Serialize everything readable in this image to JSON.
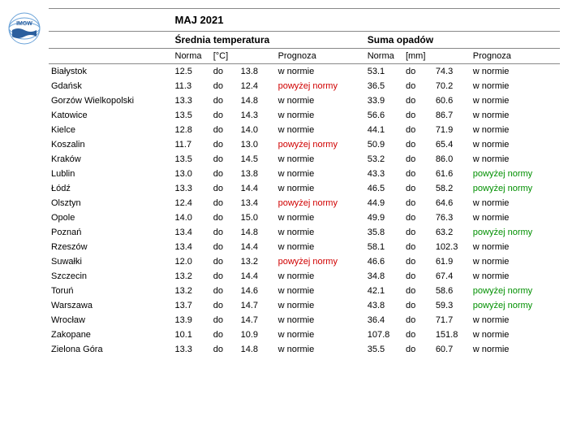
{
  "title": "MAJ 2021",
  "sections": {
    "temp": {
      "label": "Średnia temperatura",
      "norma_label": "Norma",
      "unit": "[°C]",
      "prognoza_label": "Prognoza"
    },
    "prec": {
      "label": "Suma opadów",
      "norma_label": "Norma",
      "unit": "[mm]",
      "prognoza_label": "Prognoza"
    }
  },
  "do_label": "do",
  "prognoza_values": {
    "normal": "w normie",
    "above": "powyżej normy"
  },
  "colors": {
    "above_temp": "#d00000",
    "above_prec": "#009000"
  },
  "rows": [
    {
      "city": "Białystok",
      "t_lo": "12.5",
      "t_hi": "13.8",
      "t_prog": "normal",
      "p_lo": "53.1",
      "p_hi": "74.3",
      "p_prog": "normal"
    },
    {
      "city": "Gdańsk",
      "t_lo": "11.3",
      "t_hi": "12.4",
      "t_prog": "above",
      "p_lo": "36.5",
      "p_hi": "70.2",
      "p_prog": "normal"
    },
    {
      "city": "Gorzów Wielkopolski",
      "t_lo": "13.3",
      "t_hi": "14.8",
      "t_prog": "normal",
      "p_lo": "33.9",
      "p_hi": "60.6",
      "p_prog": "normal"
    },
    {
      "city": "Katowice",
      "t_lo": "13.5",
      "t_hi": "14.3",
      "t_prog": "normal",
      "p_lo": "56.6",
      "p_hi": "86.7",
      "p_prog": "normal"
    },
    {
      "city": "Kielce",
      "t_lo": "12.8",
      "t_hi": "14.0",
      "t_prog": "normal",
      "p_lo": "44.1",
      "p_hi": "71.9",
      "p_prog": "normal"
    },
    {
      "city": "Koszalin",
      "t_lo": "11.7",
      "t_hi": "13.0",
      "t_prog": "above",
      "p_lo": "50.9",
      "p_hi": "65.4",
      "p_prog": "normal"
    },
    {
      "city": "Kraków",
      "t_lo": "13.5",
      "t_hi": "14.5",
      "t_prog": "normal",
      "p_lo": "53.2",
      "p_hi": "86.0",
      "p_prog": "normal"
    },
    {
      "city": "Lublin",
      "t_lo": "13.0",
      "t_hi": "13.8",
      "t_prog": "normal",
      "p_lo": "43.3",
      "p_hi": "61.6",
      "p_prog": "above"
    },
    {
      "city": "Łódź",
      "t_lo": "13.3",
      "t_hi": "14.4",
      "t_prog": "normal",
      "p_lo": "46.5",
      "p_hi": "58.2",
      "p_prog": "above"
    },
    {
      "city": "Olsztyn",
      "t_lo": "12.4",
      "t_hi": "13.4",
      "t_prog": "above",
      "p_lo": "44.9",
      "p_hi": "64.6",
      "p_prog": "normal"
    },
    {
      "city": "Opole",
      "t_lo": "14.0",
      "t_hi": "15.0",
      "t_prog": "normal",
      "p_lo": "49.9",
      "p_hi": "76.3",
      "p_prog": "normal"
    },
    {
      "city": "Poznań",
      "t_lo": "13.4",
      "t_hi": "14.8",
      "t_prog": "normal",
      "p_lo": "35.8",
      "p_hi": "63.2",
      "p_prog": "above"
    },
    {
      "city": "Rzeszów",
      "t_lo": "13.4",
      "t_hi": "14.4",
      "t_prog": "normal",
      "p_lo": "58.1",
      "p_hi": "102.3",
      "p_prog": "normal"
    },
    {
      "city": "Suwałki",
      "t_lo": "12.0",
      "t_hi": "13.2",
      "t_prog": "above",
      "p_lo": "46.6",
      "p_hi": "61.9",
      "p_prog": "normal"
    },
    {
      "city": "Szczecin",
      "t_lo": "13.2",
      "t_hi": "14.4",
      "t_prog": "normal",
      "p_lo": "34.8",
      "p_hi": "67.4",
      "p_prog": "normal"
    },
    {
      "city": "Toruń",
      "t_lo": "13.2",
      "t_hi": "14.6",
      "t_prog": "normal",
      "p_lo": "42.1",
      "p_hi": "58.6",
      "p_prog": "above"
    },
    {
      "city": "Warszawa",
      "t_lo": "13.7",
      "t_hi": "14.7",
      "t_prog": "normal",
      "p_lo": "43.8",
      "p_hi": "59.3",
      "p_prog": "above"
    },
    {
      "city": "Wrocław",
      "t_lo": "13.9",
      "t_hi": "14.7",
      "t_prog": "normal",
      "p_lo": "36.4",
      "p_hi": "71.7",
      "p_prog": "normal"
    },
    {
      "city": "Zakopane",
      "t_lo": "10.1",
      "t_hi": "10.9",
      "t_prog": "normal",
      "p_lo": "107.8",
      "p_hi": "151.8",
      "p_prog": "normal"
    },
    {
      "city": "Zielona Góra",
      "t_lo": "13.3",
      "t_hi": "14.8",
      "t_prog": "normal",
      "p_lo": "35.5",
      "p_hi": "60.7",
      "p_prog": "normal"
    }
  ]
}
